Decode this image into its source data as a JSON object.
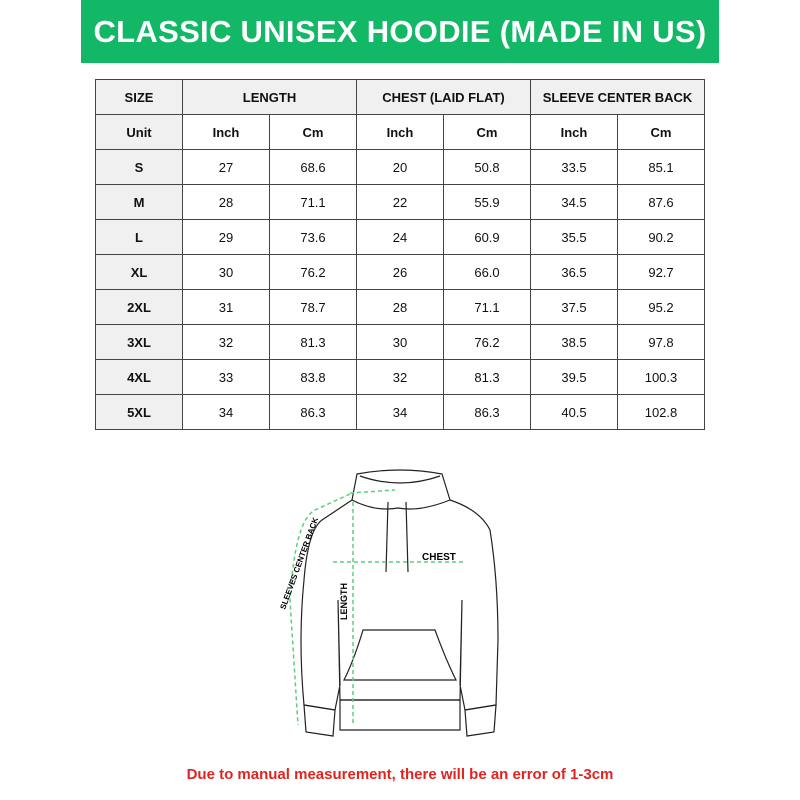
{
  "title": "CLASSIC UNISEX HOODIE (MADE IN US)",
  "header": {
    "size": "SIZE",
    "length": "LENGTH",
    "chest": "CHEST (LAID FLAT)",
    "sleeve": "SLEEVE CENTER BACK"
  },
  "units": {
    "label": "Unit",
    "inch": "Inch",
    "cm": "Cm"
  },
  "rows": [
    {
      "size": "S",
      "len_in": "27",
      "len_cm": "68.6",
      "chest_in": "20",
      "chest_cm": "50.8",
      "sleeve_in": "33.5",
      "sleeve_cm": "85.1"
    },
    {
      "size": "M",
      "len_in": "28",
      "len_cm": "71.1",
      "chest_in": "22",
      "chest_cm": "55.9",
      "sleeve_in": "34.5",
      "sleeve_cm": "87.6"
    },
    {
      "size": "L",
      "len_in": "29",
      "len_cm": "73.6",
      "chest_in": "24",
      "chest_cm": "60.9",
      "sleeve_in": "35.5",
      "sleeve_cm": "90.2"
    },
    {
      "size": "XL",
      "len_in": "30",
      "len_cm": "76.2",
      "chest_in": "26",
      "chest_cm": "66.0",
      "sleeve_in": "36.5",
      "sleeve_cm": "92.7"
    },
    {
      "size": "2XL",
      "len_in": "31",
      "len_cm": "78.7",
      "chest_in": "28",
      "chest_cm": "71.1",
      "sleeve_in": "37.5",
      "sleeve_cm": "95.2"
    },
    {
      "size": "3XL",
      "len_in": "32",
      "len_cm": "81.3",
      "chest_in": "30",
      "chest_cm": "76.2",
      "sleeve_in": "38.5",
      "sleeve_cm": "97.8"
    },
    {
      "size": "4XL",
      "len_in": "33",
      "len_cm": "83.8",
      "chest_in": "32",
      "chest_cm": "81.3",
      "sleeve_in": "39.5",
      "sleeve_cm": "100.3"
    },
    {
      "size": "5XL",
      "len_in": "34",
      "len_cm": "86.3",
      "chest_in": "34",
      "chest_cm": "86.3",
      "sleeve_in": "40.5",
      "sleeve_cm": "102.8"
    }
  ],
  "diagram": {
    "chest": "CHEST",
    "length": "LENGTH",
    "sleeve": "SLEEVES CENTER BACK"
  },
  "note": "Due to manual measurement, there will be an error of 1-3cm",
  "colors": {
    "brand": "#12b866",
    "note": "#e0241f",
    "measure": "#5ccf7a"
  }
}
